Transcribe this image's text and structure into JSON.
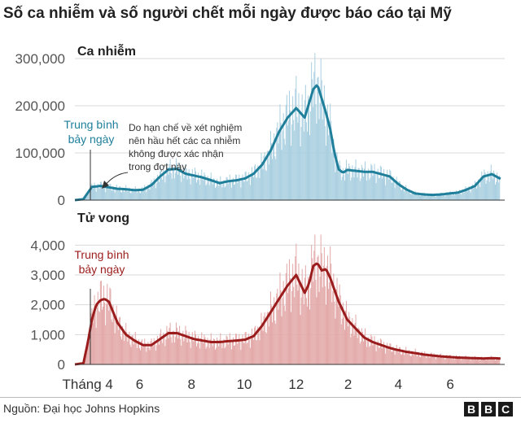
{
  "title": "Số ca nhiễm và số người chết mỗi ngày được báo cáo tại Mỹ",
  "source": "Nguồn: Đại học Johns Hopkins",
  "logo": [
    "B",
    "B",
    "C"
  ],
  "chart_data": [
    {
      "type": "bar",
      "title": "Ca nhiễm",
      "bar_color": "#a9cfe0",
      "line_color": "#1f7f9a",
      "ylim": [
        0,
        300000
      ],
      "yticks": [
        "0",
        "100,000",
        "200,000",
        "300,000"
      ],
      "ytick_values": [
        0,
        100000,
        200000,
        300000
      ],
      "annotation_label": [
        "Trung bình",
        "bảy ngày"
      ],
      "annotation_note": [
        "Do hạn chế về xét nghiệm",
        "nên hầu hết các ca nhiễm",
        "không được xác nhận",
        "trong đợt này"
      ],
      "series": [
        {
          "name": "Trung bình bảy ngày",
          "x": [
            0,
            10,
            15,
            20,
            30,
            40,
            50,
            60,
            70,
            80,
            90,
            100,
            110,
            120,
            130,
            140,
            150,
            160,
            170,
            180,
            190,
            200,
            210,
            220,
            230,
            240,
            250,
            260,
            270,
            280,
            285,
            290,
            295,
            300,
            305,
            310,
            315,
            320,
            330,
            340,
            350,
            360,
            370,
            380,
            390,
            400,
            410,
            420,
            430,
            440,
            450,
            460,
            470,
            480,
            490,
            500
          ],
          "y": [
            0,
            2000,
            15000,
            28000,
            30000,
            27000,
            24000,
            23000,
            21000,
            22000,
            32000,
            50000,
            65000,
            66000,
            56000,
            52000,
            48000,
            42000,
            36000,
            40000,
            42000,
            46000,
            56000,
            75000,
            105000,
            145000,
            175000,
            195000,
            175000,
            235000,
            245000,
            215000,
            185000,
            150000,
            100000,
            65000,
            58000,
            64000,
            62000,
            60000,
            60000,
            55000,
            50000,
            34000,
            22000,
            14000,
            12000,
            11000,
            12000,
            14000,
            16000,
            22000,
            30000,
            50000,
            55000,
            45000
          ]
        },
        {
          "name": "Ca nhiễm",
          "x": [
            0,
            10,
            15,
            20,
            30,
            40,
            50,
            60,
            70,
            80,
            90,
            100,
            110,
            120,
            130,
            140,
            150,
            160,
            170,
            180,
            190,
            200,
            210,
            220,
            230,
            240,
            250,
            260,
            270,
            280,
            285,
            290,
            295,
            300,
            305,
            310,
            315,
            320,
            330,
            340,
            350,
            360,
            370,
            380,
            390,
            400,
            410,
            420,
            430,
            440,
            450,
            460,
            470,
            480,
            490,
            500
          ],
          "y": [
            0,
            2000,
            15000,
            28000,
            30000,
            27000,
            24000,
            23000,
            21000,
            22000,
            32000,
            50000,
            65000,
            66000,
            56000,
            52000,
            48000,
            42000,
            36000,
            40000,
            42000,
            46000,
            56000,
            75000,
            105000,
            145000,
            175000,
            195000,
            175000,
            235000,
            245000,
            215000,
            185000,
            150000,
            100000,
            65000,
            58000,
            64000,
            62000,
            60000,
            60000,
            55000,
            50000,
            34000,
            22000,
            14000,
            12000,
            11000,
            12000,
            14000,
            16000,
            22000,
            30000,
            50000,
            55000,
            45000
          ]
        }
      ]
    },
    {
      "type": "bar",
      "title": "Tử vong",
      "bar_color": "#e3a8a8",
      "line_color": "#9b1c1c",
      "ylim": [
        0,
        4500
      ],
      "yticks": [
        "0",
        "1,000",
        "2,000",
        "3,000",
        "4,000"
      ],
      "ytick_values": [
        0,
        1000,
        2000,
        3000,
        4000
      ],
      "annotation_label": [
        "Trung bình",
        "bảy ngày"
      ],
      "series": [
        {
          "name": "Trung bình bảy ngày",
          "x": [
            0,
            10,
            15,
            20,
            25,
            30,
            35,
            40,
            50,
            60,
            70,
            80,
            90,
            100,
            110,
            120,
            130,
            140,
            150,
            160,
            170,
            180,
            190,
            200,
            210,
            220,
            230,
            240,
            250,
            260,
            270,
            275,
            280,
            285,
            290,
            295,
            300,
            305,
            310,
            320,
            330,
            340,
            350,
            360,
            370,
            380,
            390,
            400,
            410,
            420,
            430,
            440,
            450,
            460,
            470,
            480,
            490,
            500
          ],
          "y": [
            0,
            40,
            700,
            1500,
            2000,
            2150,
            2200,
            2100,
            1400,
            1000,
            800,
            650,
            650,
            850,
            1050,
            1050,
            950,
            850,
            800,
            750,
            750,
            780,
            800,
            830,
            950,
            1300,
            1750,
            2200,
            2650,
            3000,
            2400,
            2700,
            3300,
            3400,
            3150,
            3200,
            2900,
            2500,
            2100,
            1500,
            1200,
            900,
            750,
            650,
            550,
            480,
            420,
            380,
            330,
            300,
            270,
            250,
            230,
            220,
            210,
            200,
            210,
            200
          ]
        },
        {
          "name": "Tử vong",
          "x": [
            0,
            10,
            15,
            20,
            25,
            30,
            35,
            40,
            50,
            60,
            70,
            80,
            90,
            100,
            110,
            120,
            130,
            140,
            150,
            160,
            170,
            180,
            190,
            200,
            210,
            220,
            230,
            240,
            250,
            260,
            270,
            275,
            280,
            285,
            290,
            295,
            300,
            305,
            310,
            320,
            330,
            340,
            350,
            360,
            370,
            380,
            390,
            400,
            410,
            420,
            430,
            440,
            450,
            460,
            470,
            480,
            490,
            500
          ],
          "y": [
            0,
            40,
            700,
            1500,
            2000,
            2150,
            2200,
            2100,
            1400,
            1000,
            800,
            650,
            650,
            850,
            1050,
            1050,
            950,
            850,
            800,
            750,
            750,
            780,
            800,
            830,
            950,
            1300,
            1750,
            2200,
            2650,
            3000,
            2400,
            2700,
            3300,
            3400,
            3150,
            3200,
            2900,
            2500,
            2100,
            1500,
            1200,
            900,
            750,
            650,
            550,
            480,
            420,
            380,
            330,
            300,
            270,
            250,
            230,
            220,
            210,
            200,
            210,
            200
          ]
        }
      ]
    }
  ],
  "x_axis": {
    "labels": [
      "Tháng 4",
      "6",
      "8",
      "10",
      "12",
      "2",
      "4",
      "6"
    ],
    "values": [
      15,
      76,
      137,
      199,
      260,
      321,
      380,
      441
    ],
    "range": [
      0,
      505
    ]
  }
}
